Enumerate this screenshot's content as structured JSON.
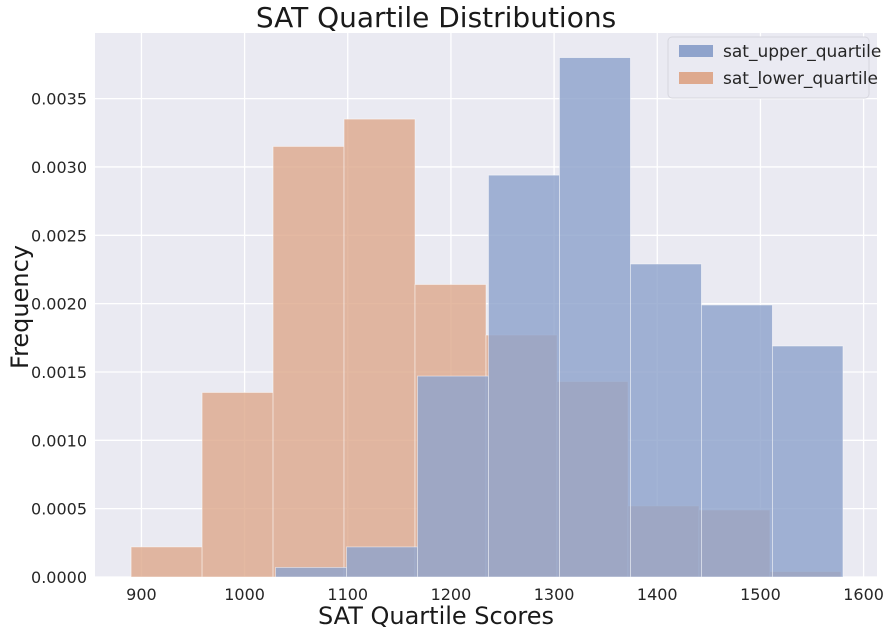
{
  "chart_data": {
    "type": "bar",
    "title": "SAT Quartile Distributions",
    "xlabel": "SAT Quartile Scores",
    "ylabel": "Frequency",
    "xlim": [
      855,
      1613
    ],
    "ylim": [
      0,
      0.00398
    ],
    "xticks": [
      900,
      1000,
      1100,
      1200,
      1300,
      1400,
      1500,
      1600
    ],
    "yticks": [
      0,
      0.0005,
      0.001,
      0.0015,
      0.002,
      0.0025,
      0.003,
      0.0035
    ],
    "ytick_labels": [
      "0.0000",
      "0.0005",
      "0.0010",
      "0.0015",
      "0.0020",
      "0.0025",
      "0.0030",
      "0.0035"
    ],
    "grid": true,
    "legend_position": "top-right",
    "series": [
      {
        "name": "sat_upper_quartile",
        "color": "#8fa3cc",
        "bin_edges": [
          1030,
          1098.8,
          1167.6,
          1236.4,
          1305.2,
          1374,
          1442.8,
          1511.6,
          1580
        ],
        "values": [
          7e-05,
          0.00022,
          0.00147,
          0.00294,
          0.0038,
          0.00229,
          0.00199,
          0.00169
        ]
      },
      {
        "name": "sat_lower_quartile",
        "color": "#dea98e",
        "bin_edges": [
          890,
          958.8,
          1027.6,
          1096.4,
          1165.2,
          1234,
          1302.8,
          1371.6,
          1440.4,
          1509.2,
          1578
        ],
        "values": [
          0.00022,
          0.00135,
          0.00315,
          0.00335,
          0.00214,
          0.00177,
          0.00143,
          0.00052,
          0.00049,
          4e-05
        ]
      }
    ]
  }
}
